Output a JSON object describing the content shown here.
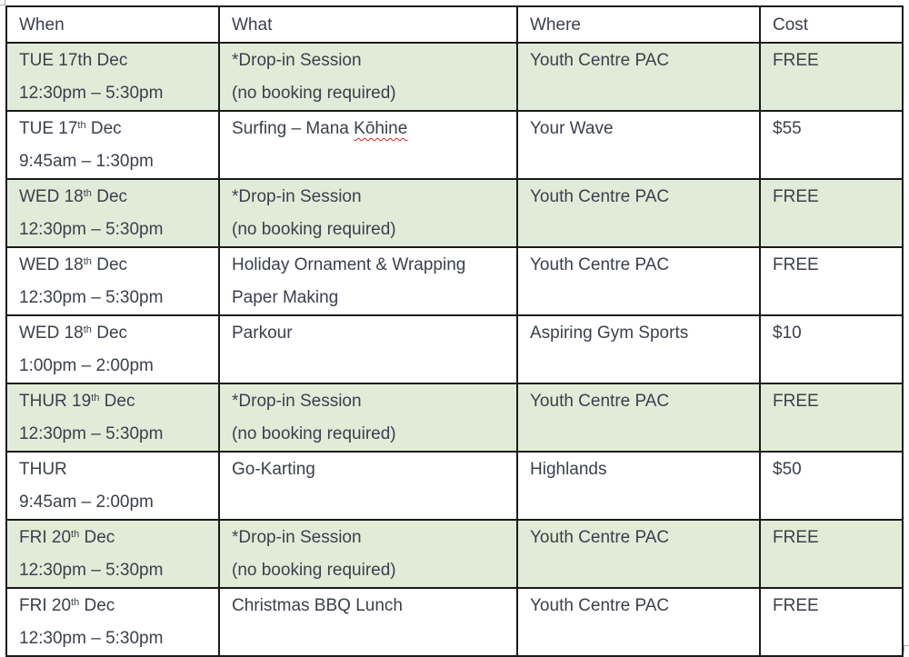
{
  "headers": [
    "When",
    "What",
    "Where",
    "Cost"
  ],
  "shade_color": "#e1ecd8",
  "rows": [
    {
      "day": "TUE 17",
      "sup": "th",
      "month": " Dec",
      "sup_small": false,
      "time": "12:30pm – 5:30pm",
      "what": [
        "*Drop-in Session",
        "(no booking required)"
      ],
      "where": "Youth Centre PAC",
      "cost": "FREE",
      "shaded": true
    },
    {
      "day": "TUE 17",
      "sup": "th",
      "month": " Dec",
      "sup_small": true,
      "time": "9:45am – 1:30pm",
      "what": [
        "Surfing – Mana ",
        ""
      ],
      "what_misspelled": "Kōhine",
      "where": "Your Wave",
      "cost": "$55",
      "shaded": false
    },
    {
      "day": "WED 18",
      "sup": "th",
      "month": " Dec",
      "sup_small": true,
      "time": "12:30pm – 5:30pm",
      "what": [
        "*Drop-in Session",
        "(no booking required)"
      ],
      "where": "Youth Centre PAC",
      "cost": "FREE",
      "shaded": true
    },
    {
      "day": "WED 18",
      "sup": "th",
      "month": " Dec",
      "sup_small": true,
      "time": "12:30pm – 5:30pm",
      "what": [
        "Holiday Ornament & Wrapping",
        "Paper Making"
      ],
      "where": "Youth Centre PAC",
      "cost": "FREE",
      "shaded": false
    },
    {
      "day": "WED 18",
      "sup": "th",
      "month": " Dec",
      "sup_small": true,
      "time": "1:00pm – 2:00pm",
      "what": [
        "Parkour",
        ""
      ],
      "where": "Aspiring Gym Sports",
      "cost": "$10",
      "shaded": false
    },
    {
      "day": "THUR 19",
      "sup": "th",
      "month": " Dec",
      "sup_small": true,
      "time": "",
      "what": [
        "*Drop-in Session",
        "(no booking required)"
      ],
      "where": "Youth Centre PAC",
      "cost": "FREE",
      "shaded": true
    },
    {
      "day": "THUR",
      "sup": "",
      "month": "",
      "sup_small": true,
      "time": "9:45am – 2:00pm",
      "what": [
        "Go-Karting",
        ""
      ],
      "where": "Highlands",
      "cost": "$50",
      "shaded": false
    },
    {
      "day": "FRI 20",
      "sup": "th",
      "month": " Dec",
      "sup_small": true,
      "time": "12:30pm – 5:30pm",
      "what": [
        "*Drop-in Session",
        "(no booking required)"
      ],
      "where": "Youth Centre PAC",
      "cost": "FREE",
      "shaded": true
    },
    {
      "day": "FRI 20",
      "sup": "th",
      "month": " Dec",
      "sup_small": true,
      "time": "12:30pm – 5:30pm",
      "what": [
        "Christmas BBQ Lunch",
        ""
      ],
      "where": "Youth Centre PAC",
      "cost": "FREE",
      "shaded": false
    }
  ]
}
